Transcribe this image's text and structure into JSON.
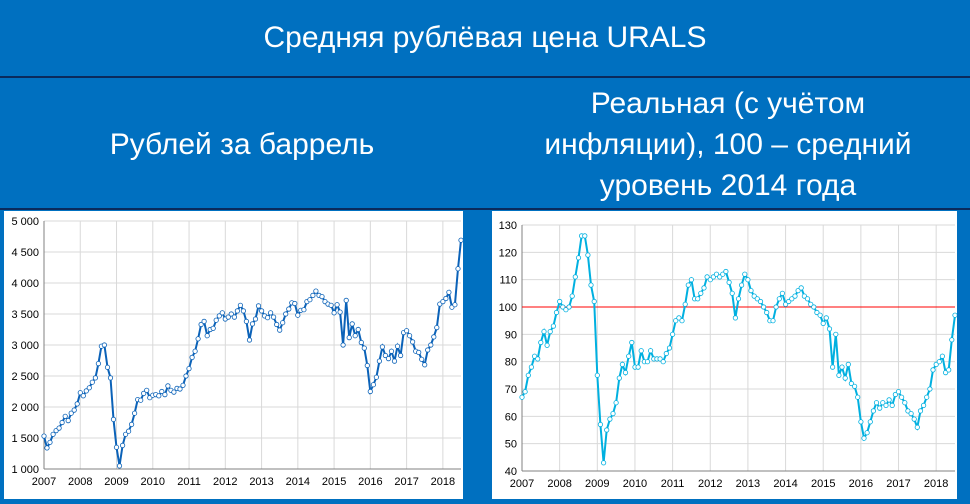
{
  "header": {
    "title": "Средняя рублёвая цена URALS",
    "left_subtitle": "Рублей за баррель",
    "right_subtitle_lines": [
      "Реальная (с учётом",
      "инфляции), 100 – средний",
      "уровень 2014 года"
    ]
  },
  "colors": {
    "background": "#0070c0",
    "left_series": "#0b62b8",
    "right_series": "#00b0e0",
    "reference_line": "#ff0000",
    "grid": "#d9d9d9"
  },
  "chart_data": [
    {
      "type": "line",
      "title": "Рублей за баррель",
      "xlabel": "",
      "ylabel": "",
      "x_start": 2007.0,
      "x_step": 0.08333,
      "x_ticks": [
        "2007",
        "2008",
        "2009",
        "2010",
        "2011",
        "2012",
        "2013",
        "2014",
        "2015",
        "2016",
        "2017",
        "2018"
      ],
      "y_ticks": [
        "1 000",
        "1 500",
        "2 000",
        "2 500",
        "3 000",
        "3 500",
        "4 000",
        "4 500",
        "5 000"
      ],
      "y_tick_values": [
        1000,
        1500,
        2000,
        2500,
        3000,
        3500,
        4000,
        4500,
        5000
      ],
      "ylim": [
        1000,
        5000
      ],
      "xlim": [
        2007.0,
        2018.5
      ],
      "grid": true,
      "marker": "circle",
      "series": [
        {
          "values": [
            1530,
            1340,
            1430,
            1560,
            1620,
            1660,
            1750,
            1850,
            1780,
            1900,
            1950,
            2050,
            2230,
            2180,
            2260,
            2310,
            2400,
            2470,
            2700,
            2980,
            3000,
            2640,
            2470,
            1800,
            1350,
            1050,
            1380,
            1560,
            1610,
            1720,
            1900,
            2120,
            2110,
            2220,
            2270,
            2150,
            2190,
            2200,
            2180,
            2250,
            2200,
            2340,
            2270,
            2240,
            2300,
            2290,
            2350,
            2500,
            2620,
            2800,
            2900,
            3100,
            3330,
            3380,
            3150,
            3250,
            3270,
            3400,
            3470,
            3520,
            3420,
            3450,
            3500,
            3450,
            3550,
            3640,
            3550,
            3380,
            3080,
            3340,
            3420,
            3630,
            3550,
            3470,
            3440,
            3520,
            3450,
            3330,
            3240,
            3360,
            3500,
            3580,
            3680,
            3670,
            3480,
            3560,
            3570,
            3700,
            3730,
            3800,
            3870,
            3800,
            3780,
            3700,
            3660,
            3640,
            3520,
            3650,
            3530,
            3000,
            3720,
            3120,
            3340,
            3150,
            3250,
            3040,
            2950,
            2670,
            2250,
            2360,
            2480,
            2740,
            2970,
            2830,
            2780,
            2900,
            2740,
            2980,
            2830,
            3200,
            3230,
            3150,
            3050,
            2900,
            2880,
            2770,
            2680,
            2920,
            3000,
            3130,
            3280,
            3660,
            3700,
            3750,
            3850,
            3610,
            3650,
            4230,
            4690
          ]
        }
      ]
    },
    {
      "type": "line",
      "title": "Реальная (с учётом инфляции), 100 – средний уровень 2014 года",
      "xlabel": "",
      "ylabel": "",
      "x_start": 2007.0,
      "x_step": 0.08333,
      "x_ticks": [
        "2007",
        "2008",
        "2009",
        "2010",
        "2011",
        "2012",
        "2013",
        "2014",
        "2015",
        "2016",
        "2017",
        "2018"
      ],
      "y_ticks": [
        "40",
        "50",
        "60",
        "70",
        "80",
        "90",
        "100",
        "110",
        "120",
        "130"
      ],
      "y_tick_values": [
        40,
        50,
        60,
        70,
        80,
        90,
        100,
        110,
        120,
        130
      ],
      "ylim": [
        40,
        130
      ],
      "xlim": [
        2007.0,
        2018.5
      ],
      "reference_line": 100,
      "grid": true,
      "marker": "circle",
      "series": [
        {
          "values": [
            67,
            69,
            75,
            78,
            82,
            81,
            87,
            91,
            86,
            91,
            93,
            98,
            102,
            100,
            99,
            100,
            104,
            111,
            118,
            126,
            126,
            119,
            108,
            102,
            75,
            57,
            43,
            55,
            59,
            61,
            65,
            74,
            79,
            76,
            82,
            87,
            78,
            78,
            84,
            80,
            80,
            84,
            81,
            81,
            81,
            80,
            83,
            85,
            90,
            95,
            96,
            95,
            101,
            108,
            110,
            103,
            103,
            105,
            107,
            111,
            110,
            111,
            112,
            111,
            112,
            113,
            109,
            105,
            96,
            103,
            108,
            112,
            110,
            106,
            104,
            103,
            102,
            100,
            98,
            95,
            95,
            100,
            103,
            105,
            101,
            102,
            103,
            104,
            106,
            107,
            104,
            103,
            101,
            100,
            98,
            97,
            94,
            96,
            92,
            78,
            90,
            75,
            78,
            74,
            79,
            72,
            71,
            67,
            58,
            52,
            54,
            58,
            62,
            65,
            63,
            65,
            64,
            66,
            64,
            68,
            69,
            67,
            65,
            62,
            61,
            59,
            56,
            62,
            64,
            67,
            70,
            77,
            79,
            80,
            82,
            76,
            77,
            88,
            97
          ]
        }
      ]
    }
  ]
}
